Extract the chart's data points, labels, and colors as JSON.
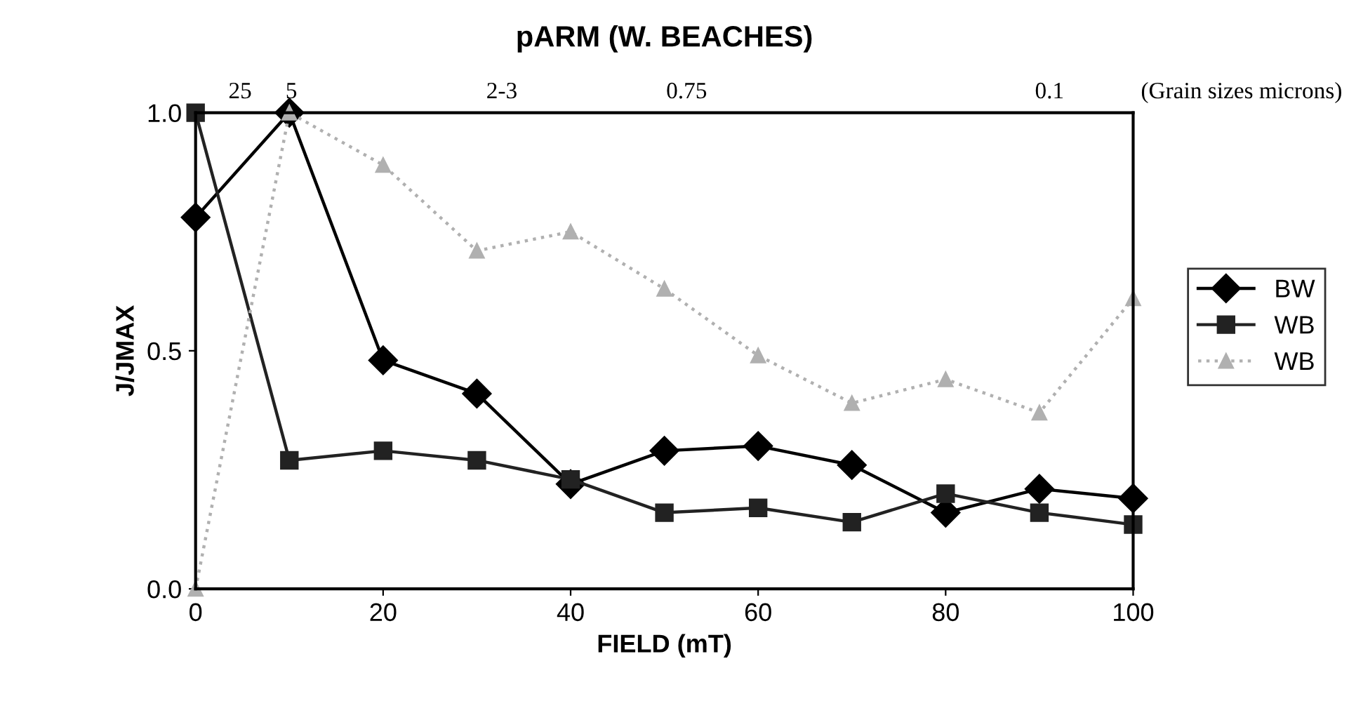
{
  "chart_data": {
    "type": "line",
    "title": "pARM (W. BEACHES)",
    "xlabel": "FIELD (mT)",
    "ylabel": "J/JMAX",
    "annotations": [
      "25",
      "5",
      "2-3",
      "0.75",
      "0.1",
      "(Grain sizes microns)"
    ],
    "x": [
      0,
      10,
      20,
      30,
      40,
      50,
      60,
      70,
      80,
      90,
      100
    ],
    "series": [
      {
        "name": "BW",
        "color": "#000000",
        "marker": "diamond",
        "line_style": "solid",
        "values": [
          0.78,
          1.0,
          0.48,
          0.41,
          0.22,
          0.29,
          0.3,
          0.26,
          0.16,
          0.21,
          0.19
        ]
      },
      {
        "name": "WB",
        "color": "#222222",
        "marker": "square",
        "line_style": "solid",
        "values": [
          1.0,
          0.27,
          0.29,
          0.27,
          0.23,
          0.16,
          0.17,
          0.14,
          0.2,
          0.16,
          0.135
        ]
      },
      {
        "name": "WB",
        "color": "#b0b0b0",
        "marker": "triangle",
        "line_style": "dotted",
        "values": [
          0.0,
          1.0,
          0.89,
          0.71,
          0.75,
          0.63,
          0.49,
          0.39,
          0.44,
          0.37,
          0.61
        ]
      }
    ],
    "xlim": [
      0,
      100
    ],
    "xticks": [
      0,
      20,
      40,
      60,
      80,
      100
    ],
    "ylim": [
      0,
      1
    ],
    "yticks": [
      {
        "value": 0,
        "label": "0.0"
      },
      {
        "value": 0.5,
        "label": "0.5"
      },
      {
        "value": 1,
        "label": "1.0"
      }
    ],
    "grid": false,
    "legend": "right"
  }
}
